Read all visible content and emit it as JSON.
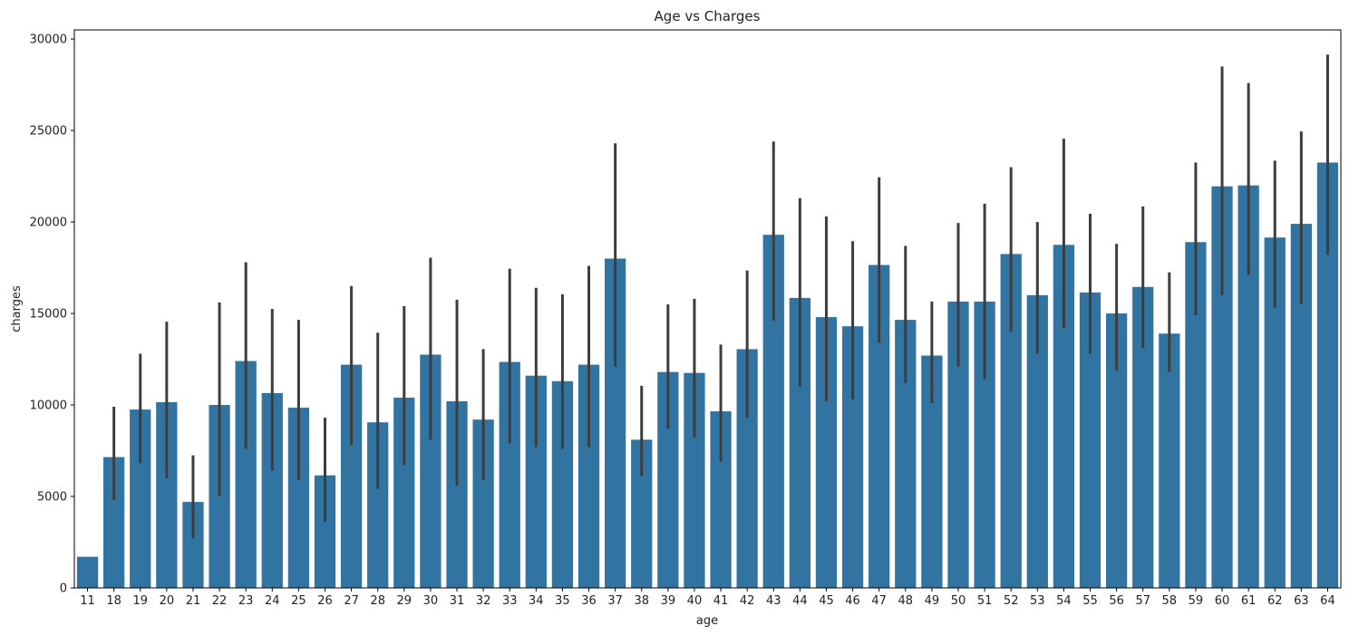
{
  "chart_data": {
    "type": "bar",
    "title": "Age vs Charges",
    "xlabel": "age",
    "ylabel": "charges",
    "ylim": [
      0,
      30500
    ],
    "yticks": [
      0,
      5000,
      10000,
      15000,
      20000,
      25000,
      30000
    ],
    "grid": false,
    "colors": {
      "bar": "#3274a1",
      "error_bar": "#3d3d3d"
    },
    "categories": [
      "11",
      "18",
      "19",
      "20",
      "21",
      "22",
      "23",
      "24",
      "25",
      "26",
      "27",
      "28",
      "29",
      "30",
      "31",
      "32",
      "33",
      "34",
      "35",
      "36",
      "37",
      "38",
      "39",
      "40",
      "41",
      "42",
      "43",
      "44",
      "45",
      "46",
      "47",
      "48",
      "49",
      "50",
      "51",
      "52",
      "53",
      "54",
      "55",
      "56",
      "57",
      "58",
      "59",
      "60",
      "61",
      "62",
      "63",
      "64"
    ],
    "values": [
      1700,
      7150,
      9750,
      10150,
      4700,
      10000,
      12400,
      10650,
      9850,
      6150,
      12200,
      9050,
      10400,
      12750,
      10200,
      9200,
      12350,
      11600,
      11300,
      12200,
      18000,
      8100,
      11800,
      11750,
      9650,
      13050,
      19300,
      15850,
      14800,
      14300,
      17650,
      14650,
      12700,
      15650,
      15650,
      18250,
      16000,
      18750,
      16150,
      15000,
      16450,
      13900,
      18900,
      21950,
      22000,
      19150,
      19900,
      23250
    ],
    "error_bars": [
      [
        1700,
        1700
      ],
      [
        4800,
        9900
      ],
      [
        6800,
        12800
      ],
      [
        6000,
        14550
      ],
      [
        2700,
        7250
      ],
      [
        5000,
        15600
      ],
      [
        7600,
        17800
      ],
      [
        6400,
        15250
      ],
      [
        5900,
        14650
      ],
      [
        3600,
        9300
      ],
      [
        7800,
        16500
      ],
      [
        5400,
        13950
      ],
      [
        6700,
        15400
      ],
      [
        8100,
        18050
      ],
      [
        5600,
        15750
      ],
      [
        5900,
        13050
      ],
      [
        7900,
        17450
      ],
      [
        7700,
        16400
      ],
      [
        7600,
        16050
      ],
      [
        7700,
        17600
      ],
      [
        12100,
        24300
      ],
      [
        6100,
        11050
      ],
      [
        8700,
        15500
      ],
      [
        8200,
        15800
      ],
      [
        6900,
        13300
      ],
      [
        9300,
        17350
      ],
      [
        14600,
        24400
      ],
      [
        11000,
        21300
      ],
      [
        10200,
        20300
      ],
      [
        10300,
        18950
      ],
      [
        13400,
        22450
      ],
      [
        11200,
        18700
      ],
      [
        10100,
        15650
      ],
      [
        12100,
        19950
      ],
      [
        11400,
        21000
      ],
      [
        14000,
        23000
      ],
      [
        12800,
        20000
      ],
      [
        14200,
        24550
      ],
      [
        12800,
        20450
      ],
      [
        11900,
        18800
      ],
      [
        13100,
        20850
      ],
      [
        11800,
        17250
      ],
      [
        14900,
        23250
      ],
      [
        16000,
        28500
      ],
      [
        17100,
        27600
      ],
      [
        15300,
        23350
      ],
      [
        15500,
        24950
      ],
      [
        18200,
        29150
      ]
    ]
  }
}
